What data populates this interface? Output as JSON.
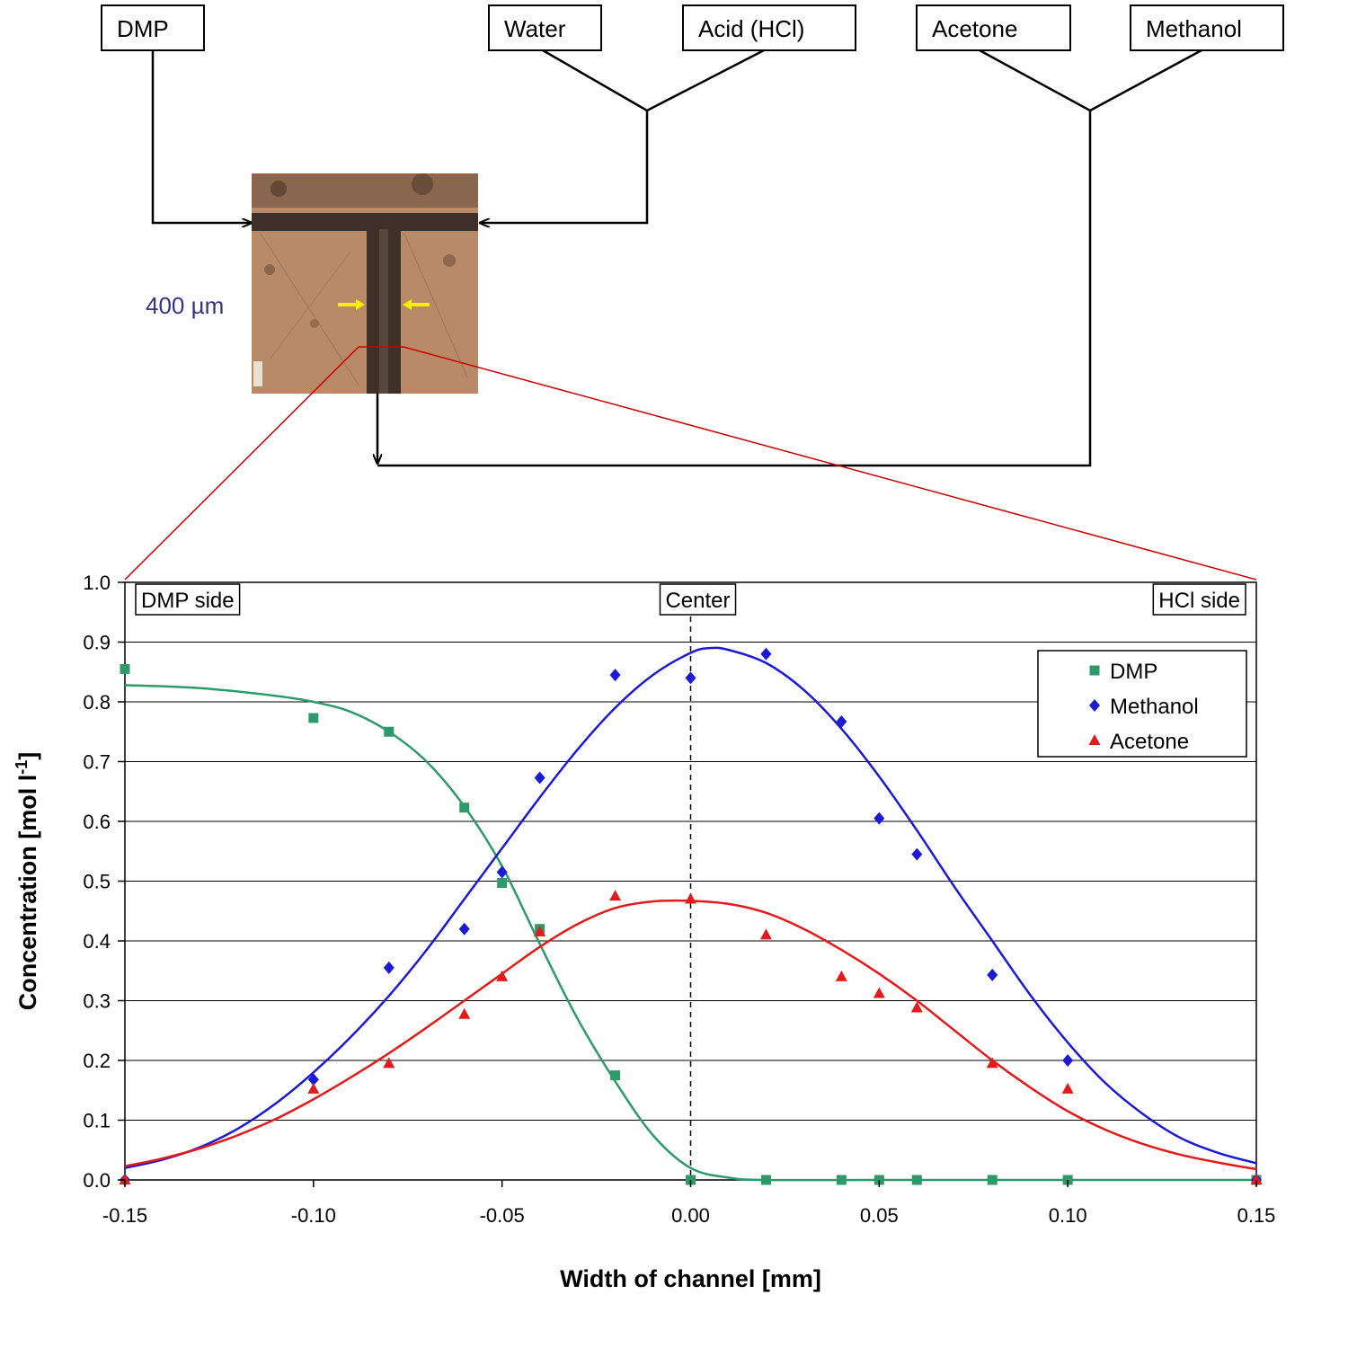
{
  "diagram": {
    "inputs": {
      "dmp": "DMP",
      "water": "Water",
      "acid": "Acid (HCl)",
      "acetone": "Acetone",
      "methanol": "Methanol"
    },
    "scale_label": "400 µm",
    "micro_photo": {
      "name": "T-junction micrograph",
      "scalebar_text": "400 µm"
    }
  },
  "chart_data": {
    "type": "scatter",
    "xlabel": "Width of channel [mm]",
    "ylabel_main": "Concentration [mol l",
    "ylabel_sup": "-1",
    "ylabel_end": "]",
    "xlim": [
      -0.15,
      0.15
    ],
    "ylim": [
      0.0,
      1.0
    ],
    "xticks": [
      "-0.15",
      "-0.10",
      "-0.05",
      "0.00",
      "0.05",
      "0.10",
      "0.15"
    ],
    "xtick_values": [
      -0.15,
      -0.1,
      -0.05,
      0.0,
      0.05,
      0.1,
      0.15
    ],
    "yticks": [
      "0.0",
      "0.1",
      "0.2",
      "0.3",
      "0.4",
      "0.5",
      "0.6",
      "0.7",
      "0.8",
      "0.9",
      "1.0"
    ],
    "ytick_values": [
      0.0,
      0.1,
      0.2,
      0.3,
      0.4,
      0.5,
      0.6,
      0.7,
      0.8,
      0.9,
      1.0
    ],
    "grid": "horizontal",
    "legend_position": "top-right",
    "annotations": {
      "left": "DMP side",
      "center": "Center",
      "right": "HCl side"
    },
    "center_line_x": 0.0,
    "series": [
      {
        "name": "DMP",
        "marker": "square",
        "color": "#2e9a6a",
        "points": [
          [
            -0.15,
            0.855
          ],
          [
            -0.1,
            0.773
          ],
          [
            -0.08,
            0.75
          ],
          [
            -0.06,
            0.623
          ],
          [
            -0.05,
            0.497
          ],
          [
            -0.04,
            0.42
          ],
          [
            -0.02,
            0.175
          ],
          [
            0.0,
            0.0
          ],
          [
            0.02,
            0.0
          ],
          [
            0.04,
            0.0
          ],
          [
            0.05,
            0.0
          ],
          [
            0.06,
            0.0
          ],
          [
            0.08,
            0.0
          ],
          [
            0.1,
            0.0
          ],
          [
            0.15,
            0.0
          ]
        ],
        "fit": [
          [
            -0.15,
            0.828
          ],
          [
            -0.13,
            0.823
          ],
          [
            -0.11,
            0.81
          ],
          [
            -0.1,
            0.8
          ],
          [
            -0.09,
            0.783
          ],
          [
            -0.08,
            0.75
          ],
          [
            -0.07,
            0.7
          ],
          [
            -0.06,
            0.625
          ],
          [
            -0.05,
            0.525
          ],
          [
            -0.04,
            0.395
          ],
          [
            -0.03,
            0.27
          ],
          [
            -0.02,
            0.165
          ],
          [
            -0.01,
            0.075
          ],
          [
            0.0,
            0.02
          ],
          [
            0.01,
            0.004
          ],
          [
            0.02,
            0.0
          ],
          [
            0.05,
            0.0
          ],
          [
            0.1,
            0.0
          ],
          [
            0.15,
            0.0
          ]
        ]
      },
      {
        "name": "Methanol",
        "marker": "diamond",
        "color": "#1a1ad6",
        "points": [
          [
            -0.15,
            0.0
          ],
          [
            -0.1,
            0.168
          ],
          [
            -0.08,
            0.355
          ],
          [
            -0.06,
            0.42
          ],
          [
            -0.05,
            0.515
          ],
          [
            -0.04,
            0.673
          ],
          [
            -0.02,
            0.845
          ],
          [
            0.0,
            0.84
          ],
          [
            0.02,
            0.88
          ],
          [
            0.04,
            0.767
          ],
          [
            0.05,
            0.605
          ],
          [
            0.06,
            0.545
          ],
          [
            0.08,
            0.343
          ],
          [
            0.1,
            0.2
          ],
          [
            0.15,
            0.0
          ]
        ],
        "fit": [
          [
            -0.15,
            0.02
          ],
          [
            -0.14,
            0.034
          ],
          [
            -0.13,
            0.055
          ],
          [
            -0.12,
            0.086
          ],
          [
            -0.11,
            0.128
          ],
          [
            -0.1,
            0.18
          ],
          [
            -0.09,
            0.24
          ],
          [
            -0.08,
            0.308
          ],
          [
            -0.07,
            0.385
          ],
          [
            -0.06,
            0.47
          ],
          [
            -0.05,
            0.555
          ],
          [
            -0.04,
            0.64
          ],
          [
            -0.03,
            0.72
          ],
          [
            -0.02,
            0.79
          ],
          [
            -0.01,
            0.845
          ],
          [
            0.0,
            0.882
          ],
          [
            0.005,
            0.89
          ],
          [
            0.01,
            0.887
          ],
          [
            0.02,
            0.865
          ],
          [
            0.03,
            0.82
          ],
          [
            0.04,
            0.755
          ],
          [
            0.05,
            0.675
          ],
          [
            0.06,
            0.585
          ],
          [
            0.07,
            0.49
          ],
          [
            0.08,
            0.4
          ],
          [
            0.09,
            0.31
          ],
          [
            0.1,
            0.23
          ],
          [
            0.11,
            0.162
          ],
          [
            0.12,
            0.11
          ],
          [
            0.13,
            0.07
          ],
          [
            0.14,
            0.045
          ],
          [
            0.15,
            0.028
          ]
        ]
      },
      {
        "name": "Acetone",
        "marker": "triangle",
        "color": "#e41a1a",
        "points": [
          [
            -0.15,
            0.0
          ],
          [
            -0.1,
            0.152
          ],
          [
            -0.08,
            0.195
          ],
          [
            -0.06,
            0.277
          ],
          [
            -0.05,
            0.34
          ],
          [
            -0.04,
            0.415
          ],
          [
            -0.02,
            0.475
          ],
          [
            0.0,
            0.47
          ],
          [
            0.02,
            0.41
          ],
          [
            0.04,
            0.34
          ],
          [
            0.05,
            0.312
          ],
          [
            0.06,
            0.288
          ],
          [
            0.08,
            0.195
          ],
          [
            0.1,
            0.152
          ],
          [
            0.15,
            0.0
          ]
        ],
        "fit": [
          [
            -0.15,
            0.023
          ],
          [
            -0.14,
            0.036
          ],
          [
            -0.13,
            0.053
          ],
          [
            -0.12,
            0.075
          ],
          [
            -0.11,
            0.102
          ],
          [
            -0.1,
            0.135
          ],
          [
            -0.09,
            0.172
          ],
          [
            -0.08,
            0.212
          ],
          [
            -0.07,
            0.255
          ],
          [
            -0.06,
            0.3
          ],
          [
            -0.05,
            0.345
          ],
          [
            -0.04,
            0.39
          ],
          [
            -0.03,
            0.428
          ],
          [
            -0.02,
            0.455
          ],
          [
            -0.01,
            0.466
          ],
          [
            0.0,
            0.467
          ],
          [
            0.01,
            0.462
          ],
          [
            0.02,
            0.447
          ],
          [
            0.03,
            0.42
          ],
          [
            0.04,
            0.385
          ],
          [
            0.05,
            0.345
          ],
          [
            0.06,
            0.3
          ],
          [
            0.07,
            0.25
          ],
          [
            0.08,
            0.2
          ],
          [
            0.09,
            0.155
          ],
          [
            0.1,
            0.115
          ],
          [
            0.11,
            0.084
          ],
          [
            0.12,
            0.06
          ],
          [
            0.13,
            0.042
          ],
          [
            0.14,
            0.029
          ],
          [
            0.15,
            0.018
          ]
        ]
      }
    ]
  }
}
